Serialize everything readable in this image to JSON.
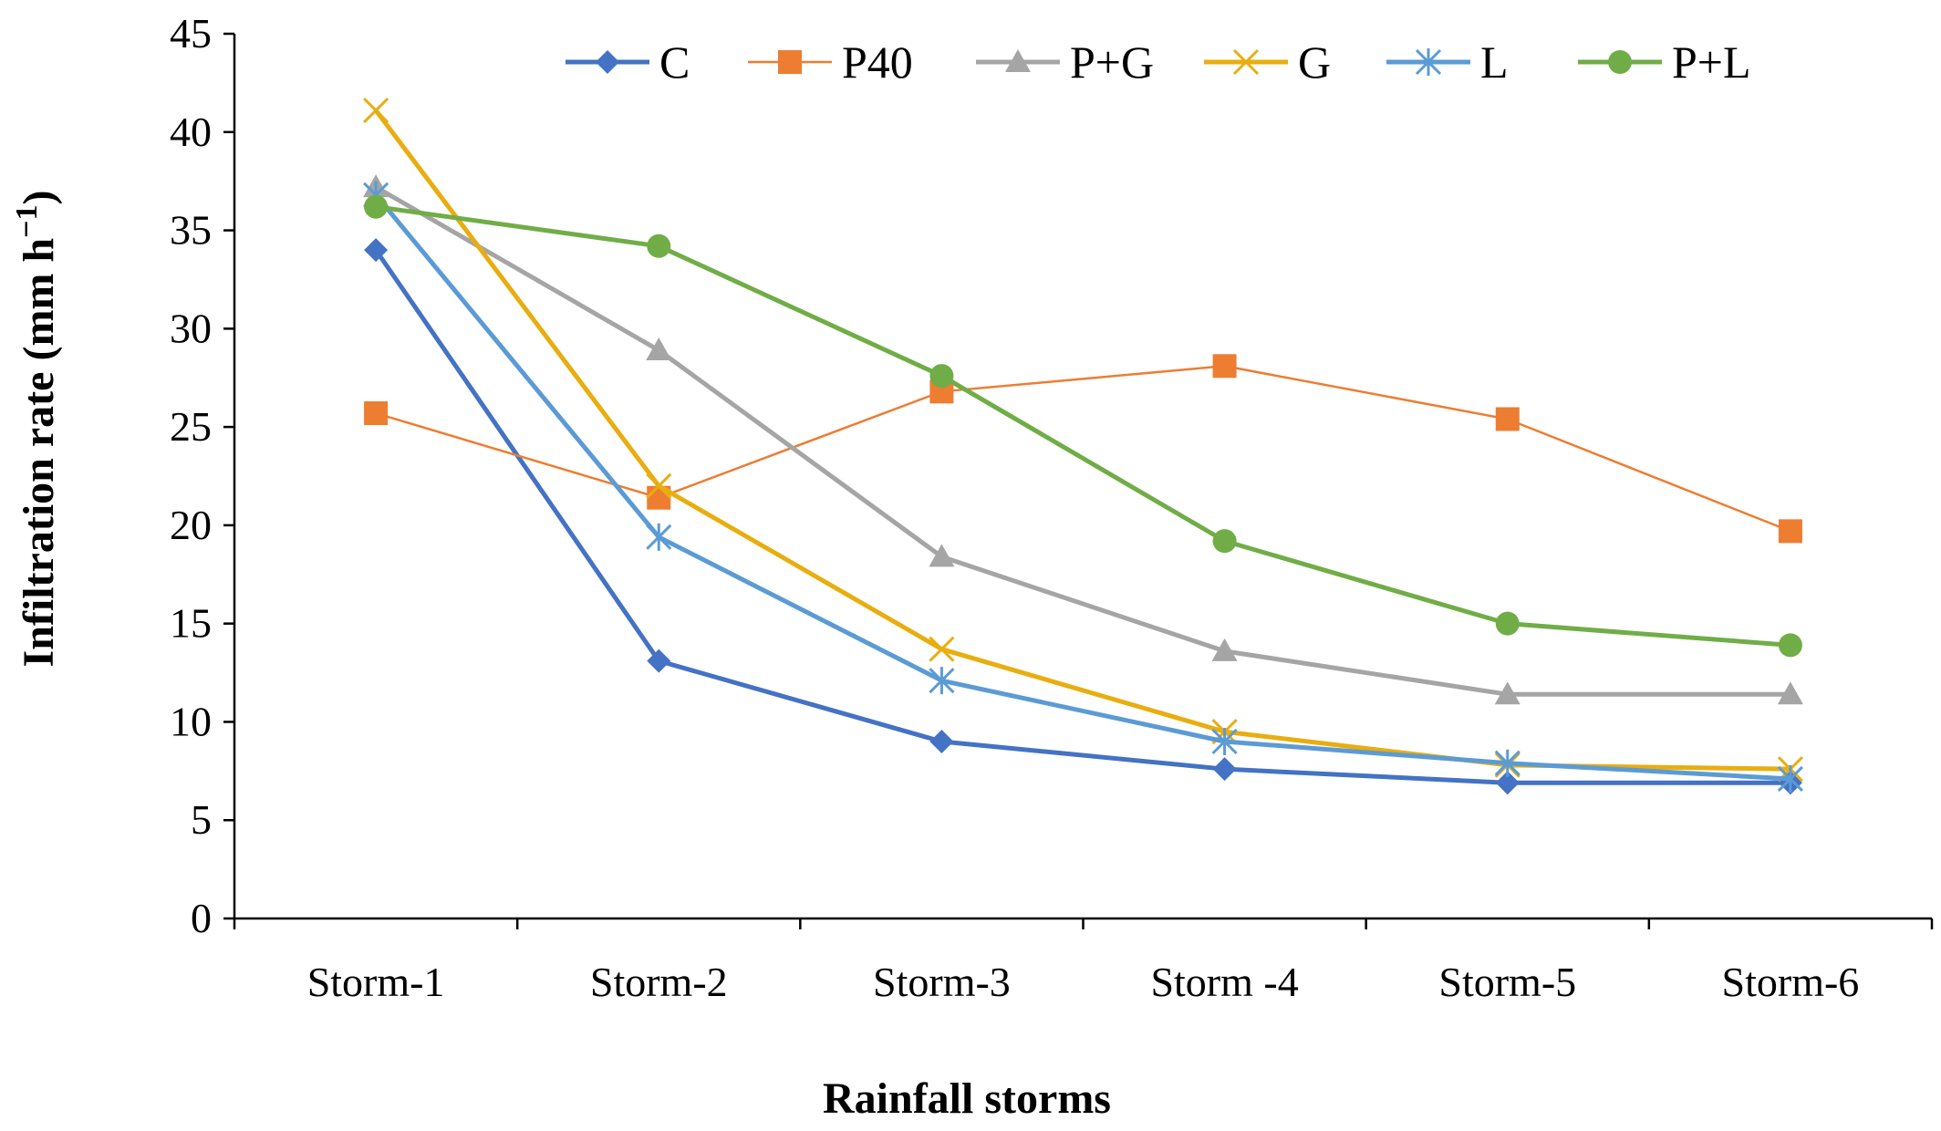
{
  "chart_data": {
    "type": "line",
    "xlabel": "Rainfall storms",
    "ylabel": "Infiltration rate (mm h",
    "ylabel_sup": "−1",
    "ylabel_tail": ")",
    "categories": [
      "Storm-1",
      "Storm-2",
      "Storm-3",
      "Storm -4",
      "Storm-5",
      "Storm-6"
    ],
    "ylim": [
      0,
      45
    ],
    "yticks": [
      0,
      5,
      10,
      15,
      20,
      25,
      30,
      35,
      40,
      45
    ],
    "grid": false,
    "legend_position": "top",
    "series": [
      {
        "name": "C",
        "color": "#4472C4",
        "marker": "diamond",
        "line_width": 5,
        "values": [
          34.0,
          13.1,
          9.0,
          7.6,
          6.9,
          6.9
        ]
      },
      {
        "name": "P40",
        "color": "#ED7D31",
        "marker": "square",
        "line_width": 2.5,
        "values": [
          25.7,
          21.4,
          26.8,
          28.1,
          25.4,
          19.7
        ]
      },
      {
        "name": "P+G",
        "color": "#A5A5A5",
        "marker": "triangle",
        "line_width": 5,
        "values": [
          37.2,
          28.9,
          18.4,
          13.6,
          11.4,
          11.4
        ]
      },
      {
        "name": "G",
        "color": "#E8AE10",
        "marker": "x",
        "line_width": 5,
        "values": [
          41.1,
          22.0,
          13.7,
          9.5,
          7.8,
          7.6
        ]
      },
      {
        "name": "L",
        "color": "#5B9BD5",
        "marker": "star",
        "line_width": 5,
        "values": [
          36.8,
          19.4,
          12.1,
          9.0,
          7.9,
          7.1
        ]
      },
      {
        "name": "P+L",
        "color": "#70AD47",
        "marker": "circle",
        "line_width": 5,
        "values": [
          36.2,
          34.2,
          27.6,
          19.2,
          15.0,
          13.9
        ]
      }
    ]
  }
}
